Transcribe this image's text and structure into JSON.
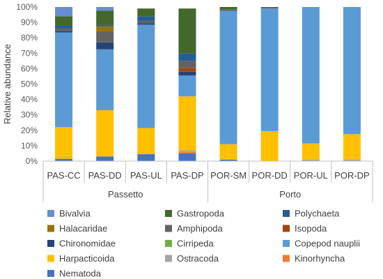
{
  "chart_data": {
    "type": "bar",
    "stacked": true,
    "ylabel": "Relative abundance",
    "ylim": [
      0,
      100
    ],
    "yticks": [
      "0%",
      "10%",
      "20%",
      "30%",
      "40%",
      "50%",
      "60%",
      "70%",
      "80%",
      "90%",
      "100%"
    ],
    "categories": [
      "PAS-CC",
      "PAS-DD",
      "PAS-UL",
      "PAS-DP",
      "POR-SM",
      "POR-DD",
      "POR-UL",
      "POR-DP"
    ],
    "groups": [
      {
        "label": "Passetto",
        "from": 0,
        "to": 3
      },
      {
        "label": "Porto",
        "from": 4,
        "to": 7
      }
    ],
    "legend_position": "bottom",
    "series": [
      {
        "name": "Nematoda",
        "color": "#4472c4",
        "values": [
          1.5,
          3,
          4.5,
          5,
          1,
          0,
          0,
          0
        ]
      },
      {
        "name": "Kinorhyncha",
        "color": "#ed7d31",
        "values": [
          0,
          0,
          0,
          1,
          0,
          0,
          0,
          0
        ]
      },
      {
        "name": "Ostracoda",
        "color": "#a5a5a5",
        "values": [
          0,
          0,
          0,
          1,
          0,
          0,
          1,
          1
        ]
      },
      {
        "name": "Harpacticoida",
        "color": "#ffc000",
        "values": [
          20.5,
          30,
          17,
          35,
          10,
          19.5,
          10.5,
          16.5
        ]
      },
      {
        "name": "Copepod nauplii",
        "color": "#5b9bd5",
        "values": [
          61.5,
          39.5,
          67,
          13.5,
          86.5,
          79.5,
          88.5,
          82.5
        ]
      },
      {
        "name": "Cirripeda",
        "color": "#70ad47",
        "values": [
          0,
          0,
          0,
          0,
          0,
          0,
          0,
          0
        ]
      },
      {
        "name": "Chironomidae",
        "color": "#264478",
        "values": [
          1,
          4.5,
          1,
          2.5,
          0,
          0,
          0,
          0
        ]
      },
      {
        "name": "Isopoda",
        "color": "#9e480e",
        "values": [
          0,
          0,
          0,
          2.5,
          0,
          0,
          0,
          0
        ]
      },
      {
        "name": "Amphipoda",
        "color": "#636363",
        "values": [
          1.5,
          7.5,
          1.5,
          4.5,
          1,
          1,
          0,
          0
        ]
      },
      {
        "name": "Halacaridae",
        "color": "#997300",
        "values": [
          0,
          3,
          0,
          0,
          0,
          0,
          0,
          0
        ]
      },
      {
        "name": "Polychaeta",
        "color": "#255e91",
        "values": [
          2,
          1,
          3,
          5,
          0,
          0,
          0,
          0
        ]
      },
      {
        "name": "Gastropoda",
        "color": "#43682b",
        "values": [
          6,
          9,
          5,
          29,
          1.5,
          0,
          0,
          0
        ]
      },
      {
        "name": "Bivalvia",
        "color": "#698ed0",
        "values": [
          6,
          2.5,
          0,
          0,
          0,
          0,
          0,
          0
        ]
      }
    ],
    "legend_order": [
      "Bivalvia",
      "Gastropoda",
      "Polychaeta",
      "Halacaridae",
      "Amphipoda",
      "Isopoda",
      "Chironomidae",
      "Cirripeda",
      "Copepod nauplii",
      "Harpacticoida",
      "Ostracoda",
      "Kinorhyncha",
      "Nematoda"
    ]
  }
}
